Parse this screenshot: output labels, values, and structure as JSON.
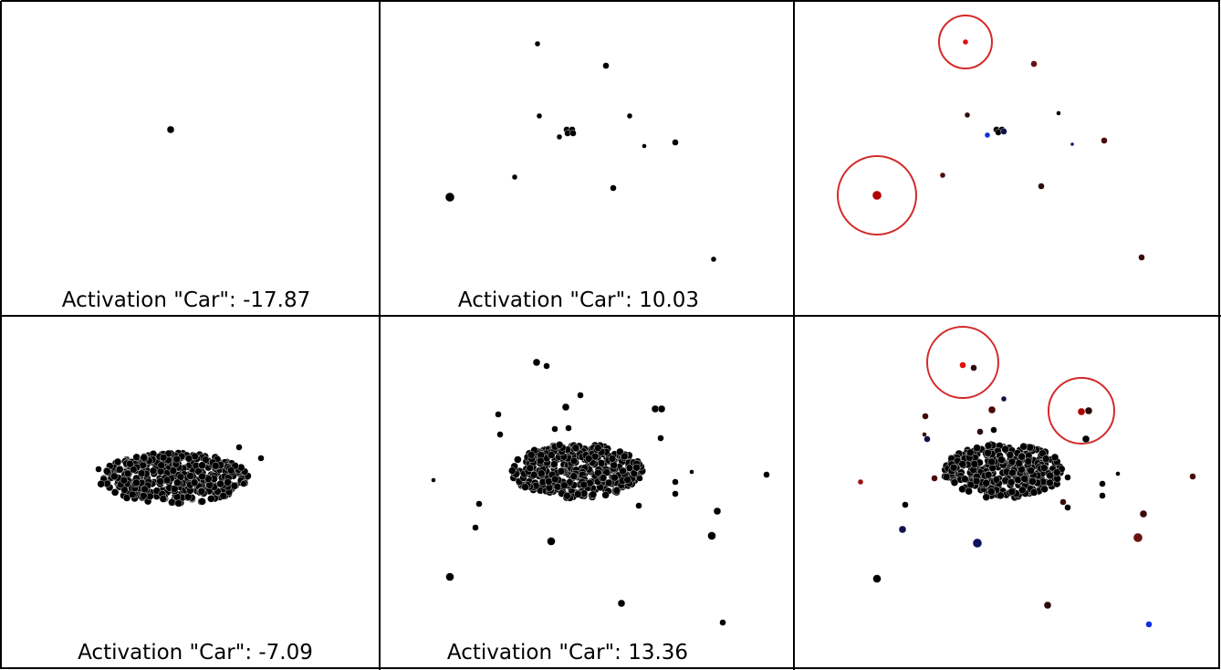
{
  "panels": [
    {
      "caption": "Activation \"Car\": -17.87"
    },
    {
      "caption": "Activation \"Car\": 10.03"
    },
    {
      "caption": "Activation \"Car\": -7.09"
    },
    {
      "caption": "Activation \"Car\": 13.36"
    }
  ]
}
